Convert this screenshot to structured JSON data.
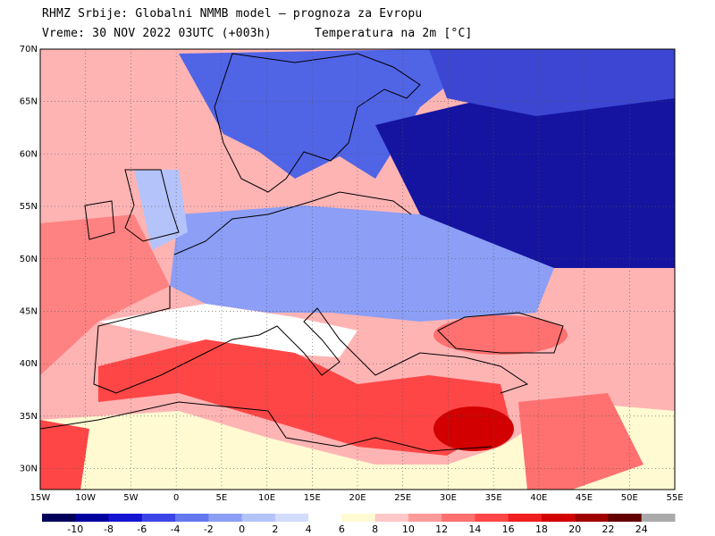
{
  "header": {
    "line1": "RHMZ Srbije: Globalni NMMB model — prognoza za Evropu",
    "line2": "Vreme: 30 NOV 2022 03UTC (+003h)",
    "field": "Temperatura na 2m [°C]"
  },
  "map": {
    "extent": {
      "lon": [
        -15,
        55
      ],
      "lat": [
        28,
        70
      ]
    },
    "lat_ticks": [
      "30N",
      "35N",
      "40N",
      "45N",
      "50N",
      "55N",
      "60N",
      "65N",
      "70N"
    ],
    "lon_ticks": [
      "15W",
      "10W",
      "5W",
      "0",
      "5E",
      "10E",
      "15E",
      "20E",
      "25E",
      "30E",
      "35E",
      "40E",
      "45E",
      "50E",
      "55E"
    ]
  },
  "colorbar": {
    "labels": [
      "-10",
      "-8",
      "-6",
      "-4",
      "-2",
      "0",
      "2",
      "4",
      "6",
      "8",
      "10",
      "12",
      "14",
      "16",
      "18",
      "20",
      "22",
      "24"
    ],
    "colors": [
      "#00005a",
      "#0000a0",
      "#1414d2",
      "#3c46e6",
      "#6478f0",
      "#8c9ef5",
      "#b4c3fa",
      "#d2dcfc",
      "#ffffff",
      "#fffad2",
      "#ffc8c8",
      "#ff9a9a",
      "#ff7070",
      "#ff4646",
      "#f01e1e",
      "#d20000",
      "#a00000",
      "#640000",
      "#aaaaaa"
    ]
  }
}
